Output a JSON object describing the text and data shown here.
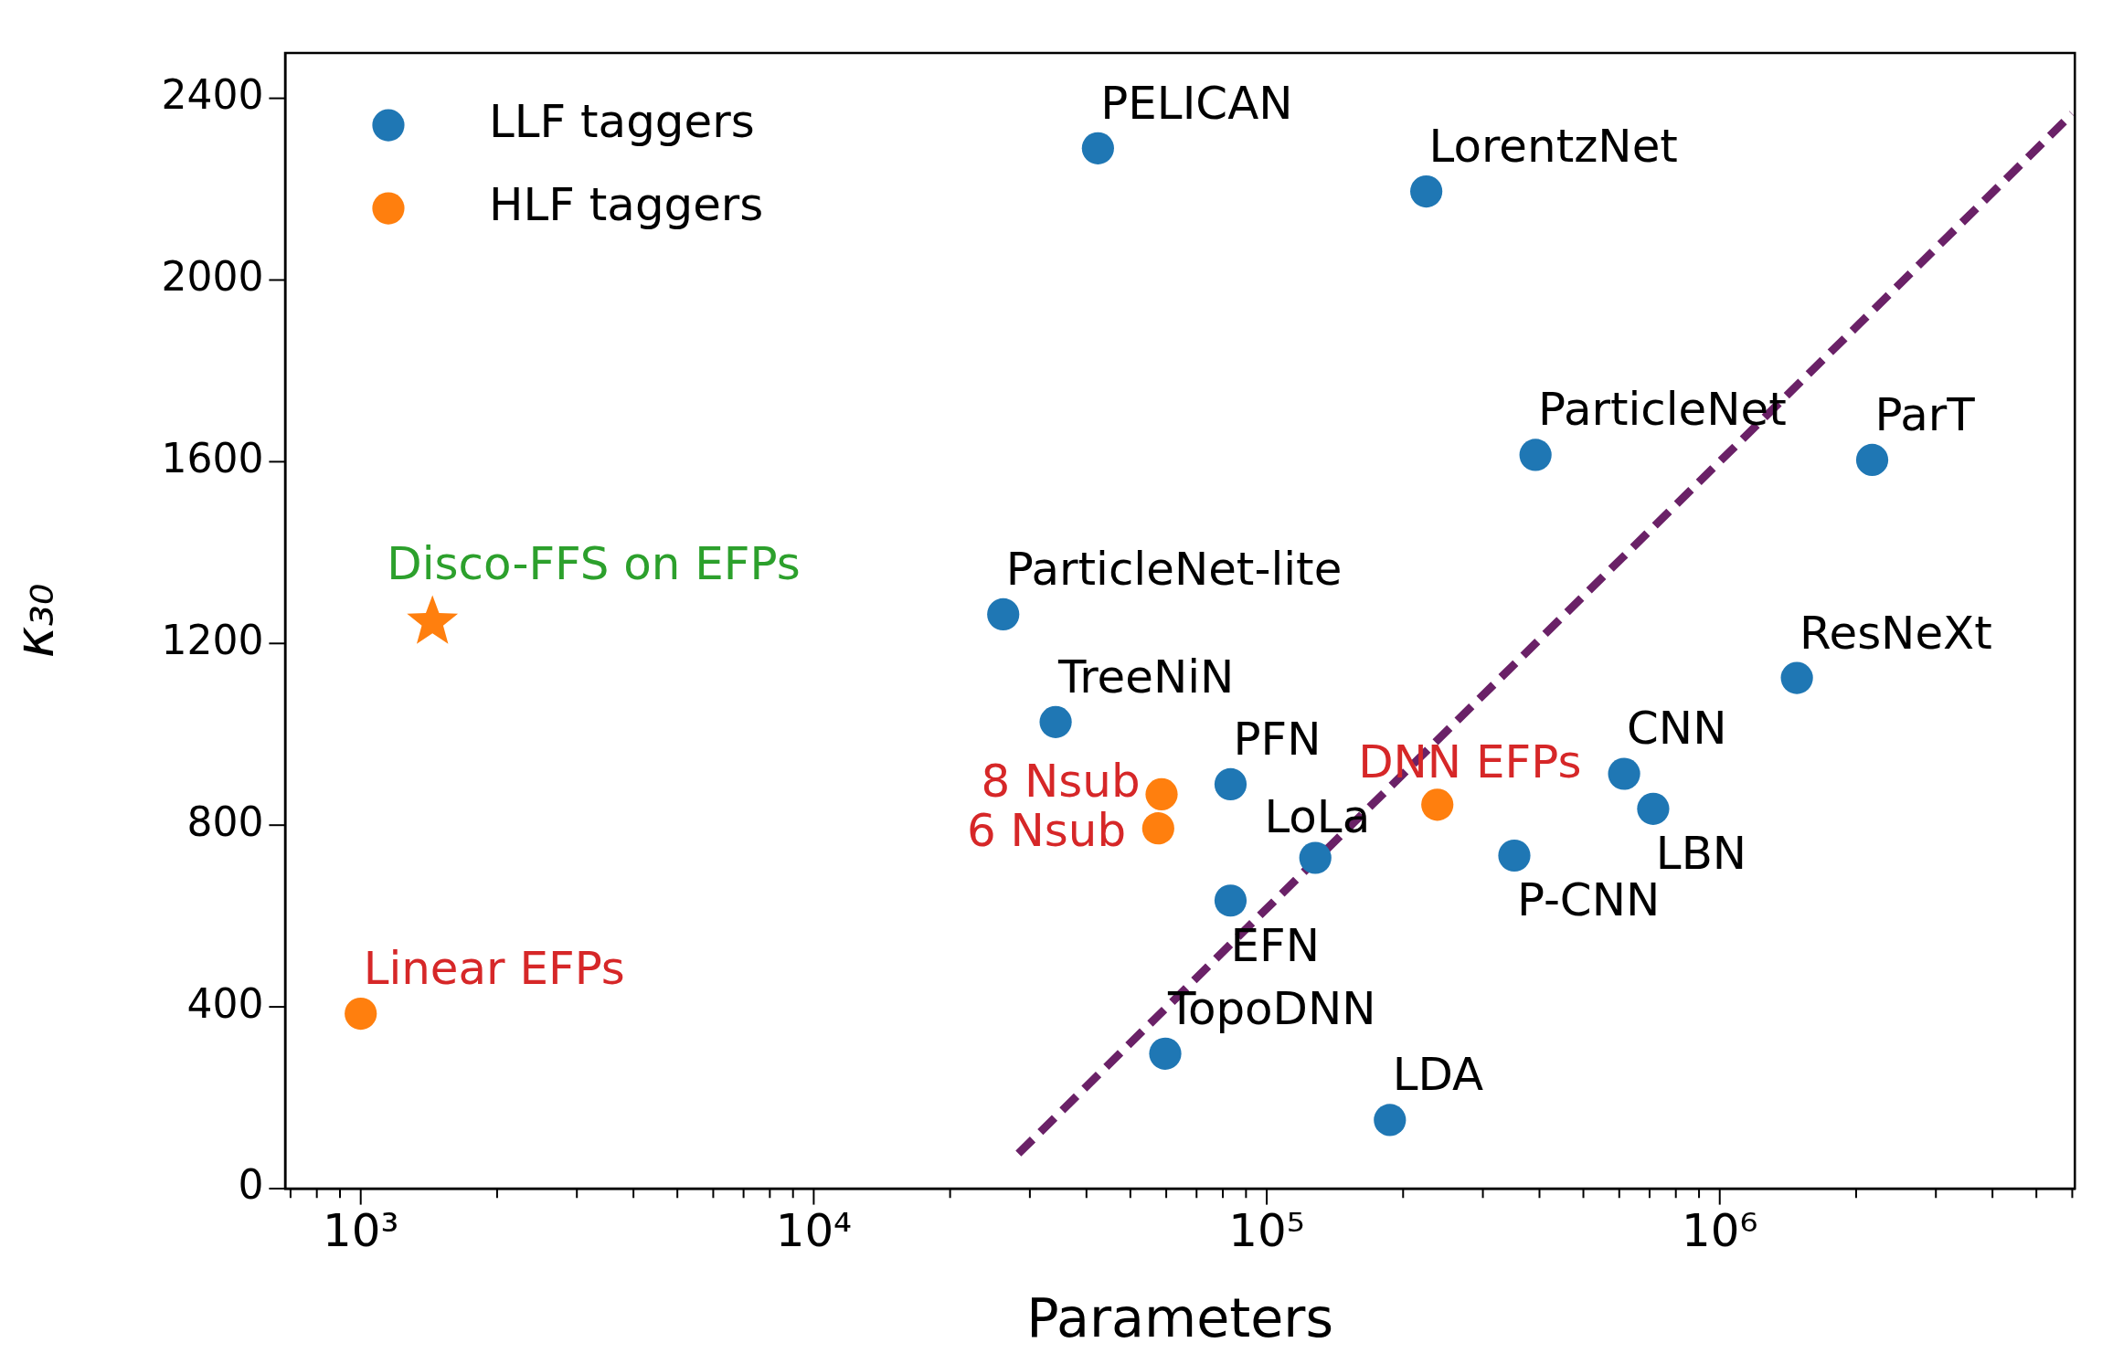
{
  "chart_data": {
    "type": "scatter",
    "xlabel": "Parameters",
    "ylabel": "κ₃₀",
    "log": "x",
    "grid": false,
    "legend": "top left",
    "xlim": [
      681,
      6080000
    ],
    "ylim": [
      0,
      2500
    ],
    "xticks": [
      {
        "value": 700,
        "label": null
      },
      {
        "value": 800,
        "label": null
      },
      {
        "value": 900,
        "label": null
      },
      {
        "value": 1000,
        "label": "10³"
      },
      {
        "value": 2000,
        "label": null
      },
      {
        "value": 3000,
        "label": null
      },
      {
        "value": 4000,
        "label": null
      },
      {
        "value": 5000,
        "label": null
      },
      {
        "value": 6000,
        "label": null
      },
      {
        "value": 7000,
        "label": null
      },
      {
        "value": 8000,
        "label": null
      },
      {
        "value": 9000,
        "label": null
      },
      {
        "value": 10000,
        "label": "10⁴"
      },
      {
        "value": 20000,
        "label": null
      },
      {
        "value": 30000,
        "label": null
      },
      {
        "value": 40000,
        "label": null
      },
      {
        "value": 50000,
        "label": null
      },
      {
        "value": 60000,
        "label": null
      },
      {
        "value": 70000,
        "label": null
      },
      {
        "value": 80000,
        "label": null
      },
      {
        "value": 90000,
        "label": null
      },
      {
        "value": 100000,
        "label": "10⁵"
      },
      {
        "value": 200000,
        "label": null
      },
      {
        "value": 300000,
        "label": null
      },
      {
        "value": 400000,
        "label": null
      },
      {
        "value": 500000,
        "label": null
      },
      {
        "value": 600000,
        "label": null
      },
      {
        "value": 700000,
        "label": null
      },
      {
        "value": 800000,
        "label": null
      },
      {
        "value": 900000,
        "label": null
      },
      {
        "value": 1000000,
        "label": "10⁶"
      },
      {
        "value": 2000000,
        "label": null
      },
      {
        "value": 3000000,
        "label": null
      },
      {
        "value": 4000000,
        "label": null
      },
      {
        "value": 5000000,
        "label": null
      },
      {
        "value": 6000000,
        "label": null
      }
    ],
    "yticks": [
      0,
      400,
      800,
      1200,
      1600,
      2000,
      2400
    ],
    "series": [
      {
        "name": "LLF taggers",
        "type": "scatter",
        "marker": "circle",
        "color": "#1f77b4",
        "x": [
          42400,
          225000,
          392000,
          2170000,
          26200,
          1480000,
          34200,
          83200,
          615000,
          713000,
          128000,
          352000,
          83200,
          59700,
          187000
        ],
        "values": [
          2290,
          2195,
          1615,
          1604,
          1264,
          1124,
          1027,
          890,
          913,
          836,
          728,
          733,
          634,
          297,
          151
        ]
      },
      {
        "name": "HLF taggers",
        "type": "scatter",
        "marker": "circle",
        "color": "#ff7f0e",
        "x": [
          58600,
          57600,
          238000,
          1000
        ],
        "values": [
          868,
          793,
          845,
          385
        ]
      },
      {
        "type": "scatter",
        "marker": "star",
        "color": "#ff7f0e",
        "x": [
          1440
        ],
        "values": [
          1247
        ]
      },
      {
        "type": "line",
        "line_style": "dashed",
        "marker": "none",
        "color": "#6a2167",
        "x": [
          28300,
          6000000
        ],
        "values": [
          77,
          2366
        ]
      }
    ],
    "annotations": [
      {
        "text": "PELICAN",
        "x": 42400,
        "y": 2290
      },
      {
        "text": "LorentzNet",
        "x": 225000,
        "y": 2195
      },
      {
        "text": "ParticleNet",
        "x": 392000,
        "y": 1615
      },
      {
        "text": "ParT",
        "x": 2170000,
        "y": 1604
      },
      {
        "text": "ParticleNet-lite",
        "x": 26200,
        "y": 1264
      },
      {
        "text": "ResNeXt",
        "x": 1480000,
        "y": 1124
      },
      {
        "text": "TreeNiN",
        "x": 34200,
        "y": 1027
      },
      {
        "text": "PFN",
        "x": 83200,
        "y": 890
      },
      {
        "text": "CNN",
        "x": 615000,
        "y": 913
      },
      {
        "text": "LBN",
        "x": 713000,
        "y": 836
      },
      {
        "text": "LoLa",
        "x": 128000,
        "y": 728
      },
      {
        "text": "P-CNN",
        "x": 352000,
        "y": 733
      },
      {
        "text": "EFN",
        "x": 83200,
        "y": 634
      },
      {
        "text": "TopoDNN",
        "x": 59700,
        "y": 297
      },
      {
        "text": "LDA",
        "x": 187000,
        "y": 151
      },
      {
        "text": "8 Nsub",
        "x": 58600,
        "y": 868
      },
      {
        "text": "6 Nsub",
        "x": 57600,
        "y": 793
      },
      {
        "text": "DNN EFPs",
        "x": 238000,
        "y": 845
      },
      {
        "text": "Linear EFPs",
        "x": 1000,
        "y": 385
      },
      {
        "text": "Disco-FFS on EFPs",
        "x": 1440,
        "y": 1247
      }
    ]
  }
}
